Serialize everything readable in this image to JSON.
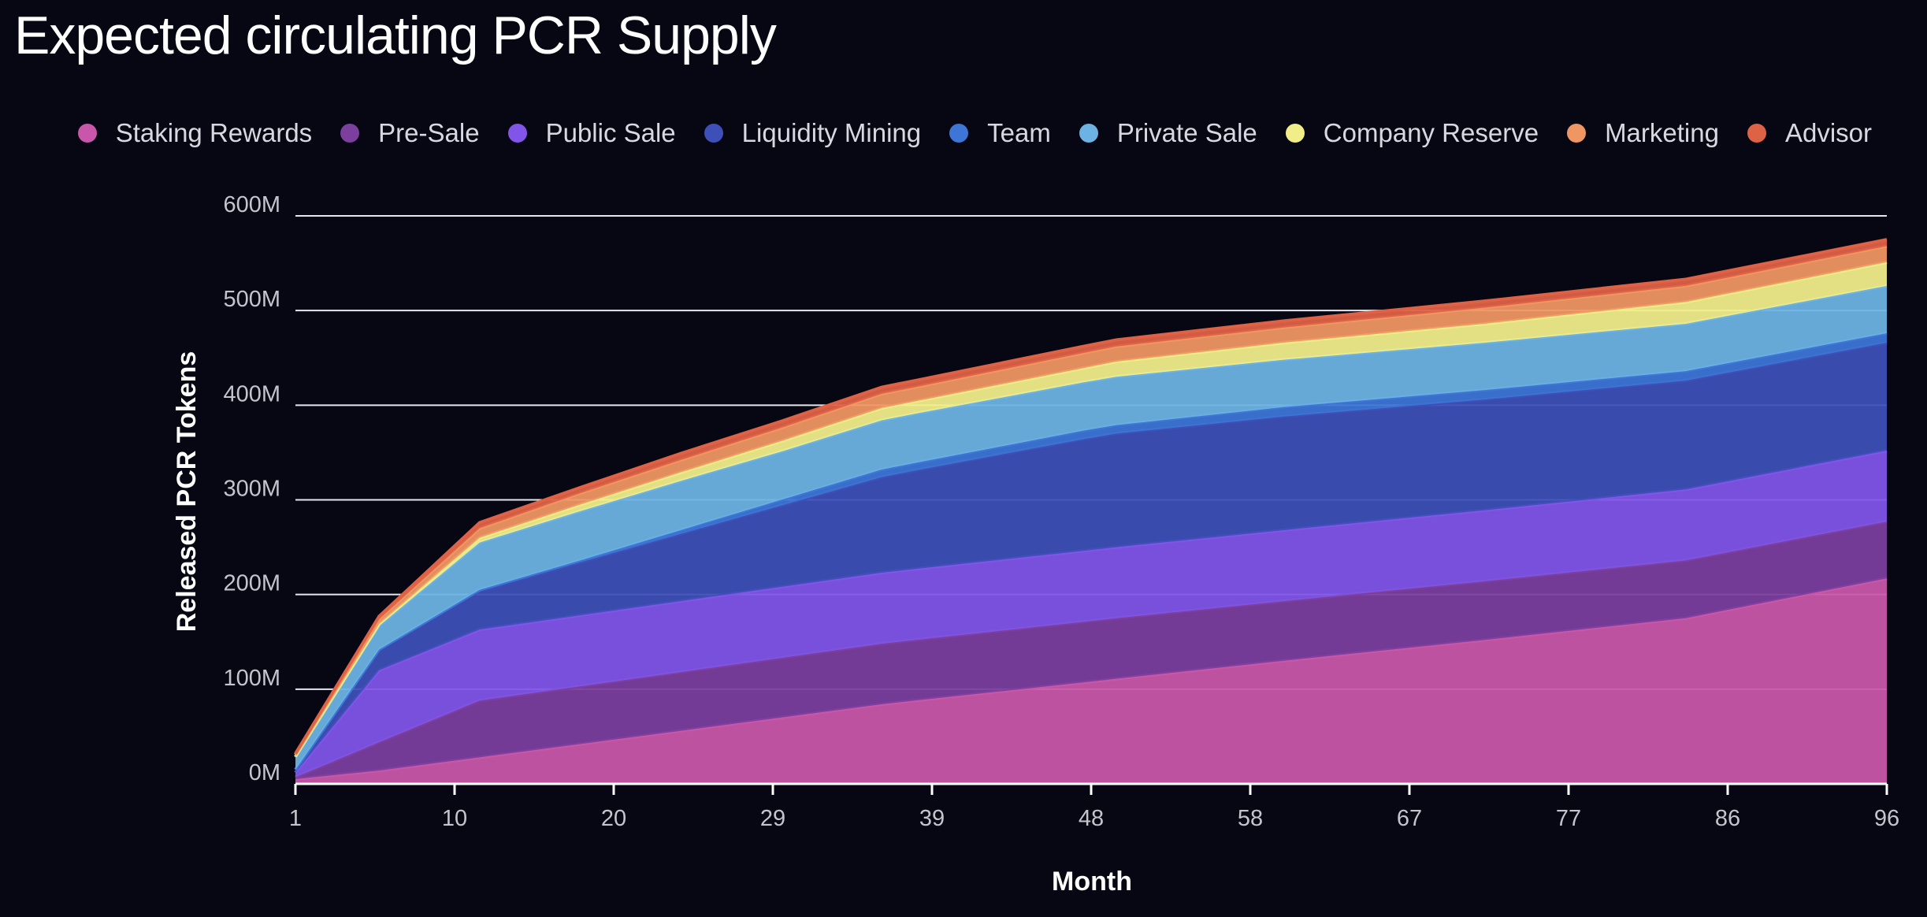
{
  "title": "Expected circulating PCR Supply",
  "chart_data": {
    "type": "area",
    "stacked": true,
    "title": "Expected circulating PCR Supply",
    "xlabel": "Month",
    "ylabel": "Released PCR Tokens",
    "x": [
      1,
      6,
      12,
      18,
      24,
      30,
      36,
      38,
      48,
      50,
      60,
      72,
      84,
      96
    ],
    "xlim": [
      1,
      96
    ],
    "x_ticks": [
      "1",
      "10",
      "20",
      "29",
      "39",
      "48",
      "58",
      "67",
      "77",
      "86",
      "96"
    ],
    "ylim": [
      0,
      600
    ],
    "y_ticks": [
      "0M",
      "100M",
      "200M",
      "300M",
      "400M",
      "500M",
      "600M"
    ],
    "y_unit": "M",
    "grid": "horizontal",
    "legend_position": "top",
    "series": [
      {
        "name": "Staking Rewards",
        "color": "#c957a9",
        "values": [
          5,
          14,
          28,
          42,
          56,
          70,
          84,
          88,
          107,
          111,
          130,
          152,
          175,
          217
        ]
      },
      {
        "name": "Pre-Sale",
        "color": "#7b3f9e",
        "values": [
          2,
          30,
          60,
          61,
          62,
          63,
          64,
          64,
          64,
          64,
          63,
          62,
          61,
          60
        ]
      },
      {
        "name": "Public Sale",
        "color": "#8155e8",
        "values": [
          5,
          76,
          75,
          75,
          75,
          75,
          75,
          75,
          75,
          75,
          75,
          75,
          75,
          75
        ]
      },
      {
        "name": "Liquidity Mining",
        "color": "#3e50b8",
        "values": [
          3,
          22,
          41,
          56,
          71,
          86,
          101,
          104,
          118,
          120,
          120,
          117,
          115,
          114
        ]
      },
      {
        "name": "Team",
        "color": "#3d76d6",
        "values": [
          0,
          0,
          1,
          2,
          4,
          6,
          8,
          8,
          9,
          9,
          10,
          10,
          10,
          10
        ]
      },
      {
        "name": "Private Sale",
        "color": "#6cb2e2",
        "values": [
          13,
          25,
          50,
          52,
          52,
          51,
          52,
          52,
          51,
          51,
          50,
          50,
          50,
          50
        ]
      },
      {
        "name": "Company Reserve",
        "color": "#f1ee8a",
        "values": [
          1,
          2,
          5,
          7,
          9,
          11,
          13,
          13,
          15,
          16,
          18,
          20,
          23,
          25
        ]
      },
      {
        "name": "Marketing",
        "color": "#f09663",
        "values": [
          2,
          5,
          10,
          12,
          13,
          14,
          15,
          15,
          16,
          16,
          16,
          17,
          17,
          17
        ]
      },
      {
        "name": "Advisor",
        "color": "#de6246",
        "values": [
          1,
          3,
          6,
          6,
          7,
          7,
          7,
          7,
          7,
          7,
          7,
          7,
          7,
          7
        ]
      }
    ]
  }
}
